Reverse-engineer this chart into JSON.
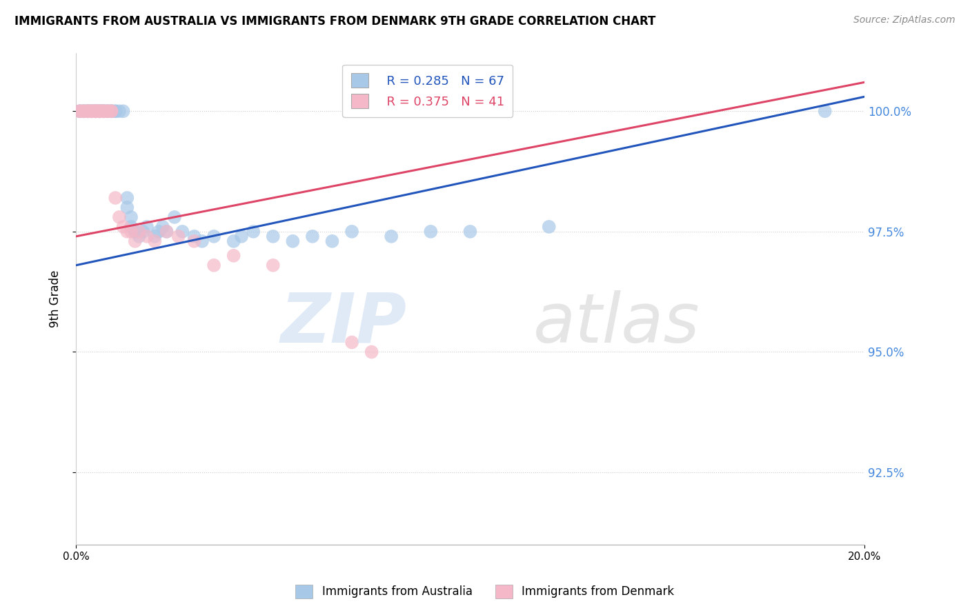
{
  "title": "IMMIGRANTS FROM AUSTRALIA VS IMMIGRANTS FROM DENMARK 9TH GRADE CORRELATION CHART",
  "source": "Source: ZipAtlas.com",
  "ylabel": "9th Grade",
  "ytick_labels": [
    "92.5%",
    "95.0%",
    "97.5%",
    "100.0%"
  ],
  "ytick_values": [
    92.5,
    95.0,
    97.5,
    100.0
  ],
  "xlim": [
    0.0,
    20.0
  ],
  "ylim": [
    91.0,
    101.2
  ],
  "legend_r_australia": "R = 0.285",
  "legend_n_australia": "N = 67",
  "legend_r_denmark": "R = 0.375",
  "legend_n_denmark": "N = 41",
  "australia_color": "#a8c8e8",
  "denmark_color": "#f4b8c8",
  "australia_line_color": "#2255bb",
  "denmark_line_color": "#dd4466",
  "aus_line_x0": 0.0,
  "aus_line_y0": 96.8,
  "aus_line_x1": 20.0,
  "aus_line_y1": 100.3,
  "den_line_x0": 0.0,
  "den_line_y0": 97.4,
  "den_line_x1": 20.0,
  "den_line_y1": 100.6,
  "australia_points_x": [
    0.1,
    0.1,
    0.2,
    0.2,
    0.2,
    0.3,
    0.3,
    0.3,
    0.3,
    0.4,
    0.4,
    0.4,
    0.4,
    0.5,
    0.5,
    0.5,
    0.5,
    0.5,
    0.6,
    0.6,
    0.6,
    0.6,
    0.7,
    0.7,
    0.7,
    0.7,
    0.8,
    0.8,
    0.8,
    0.9,
    0.9,
    0.9,
    1.0,
    1.0,
    1.1,
    1.2,
    1.3,
    1.3,
    1.4,
    1.4,
    1.5,
    1.5,
    1.6,
    1.7,
    1.8,
    2.0,
    2.1,
    2.2,
    2.3,
    2.5,
    2.7,
    3.0,
    3.2,
    3.5,
    4.0,
    4.2,
    4.5,
    5.0,
    5.5,
    6.0,
    6.5,
    7.0,
    8.0,
    9.0,
    10.0,
    12.0,
    19.0
  ],
  "australia_points_y": [
    100.0,
    100.0,
    100.0,
    100.0,
    100.0,
    100.0,
    100.0,
    100.0,
    100.0,
    100.0,
    100.0,
    100.0,
    100.0,
    100.0,
    100.0,
    100.0,
    100.0,
    100.0,
    100.0,
    100.0,
    100.0,
    100.0,
    100.0,
    100.0,
    100.0,
    100.0,
    100.0,
    100.0,
    100.0,
    100.0,
    100.0,
    100.0,
    100.0,
    100.0,
    100.0,
    100.0,
    98.2,
    98.0,
    97.8,
    97.6,
    97.5,
    97.5,
    97.4,
    97.5,
    97.6,
    97.4,
    97.5,
    97.6,
    97.5,
    97.8,
    97.5,
    97.4,
    97.3,
    97.4,
    97.3,
    97.4,
    97.5,
    97.4,
    97.3,
    97.4,
    97.3,
    97.5,
    97.4,
    97.5,
    97.5,
    97.6,
    100.0
  ],
  "denmark_points_x": [
    0.1,
    0.1,
    0.2,
    0.2,
    0.3,
    0.3,
    0.3,
    0.4,
    0.4,
    0.4,
    0.5,
    0.5,
    0.5,
    0.5,
    0.6,
    0.6,
    0.6,
    0.7,
    0.7,
    0.7,
    0.8,
    0.8,
    0.9,
    0.9,
    1.0,
    1.1,
    1.2,
    1.3,
    1.4,
    1.5,
    1.6,
    1.8,
    2.0,
    2.3,
    2.6,
    3.0,
    3.5,
    4.0,
    5.0,
    7.0,
    7.5
  ],
  "denmark_points_y": [
    100.0,
    100.0,
    100.0,
    100.0,
    100.0,
    100.0,
    100.0,
    100.0,
    100.0,
    100.0,
    100.0,
    100.0,
    100.0,
    100.0,
    100.0,
    100.0,
    100.0,
    100.0,
    100.0,
    100.0,
    100.0,
    100.0,
    100.0,
    100.0,
    98.2,
    97.8,
    97.6,
    97.5,
    97.5,
    97.3,
    97.5,
    97.4,
    97.3,
    97.5,
    97.4,
    97.3,
    96.8,
    97.0,
    96.8,
    95.2,
    95.0
  ]
}
